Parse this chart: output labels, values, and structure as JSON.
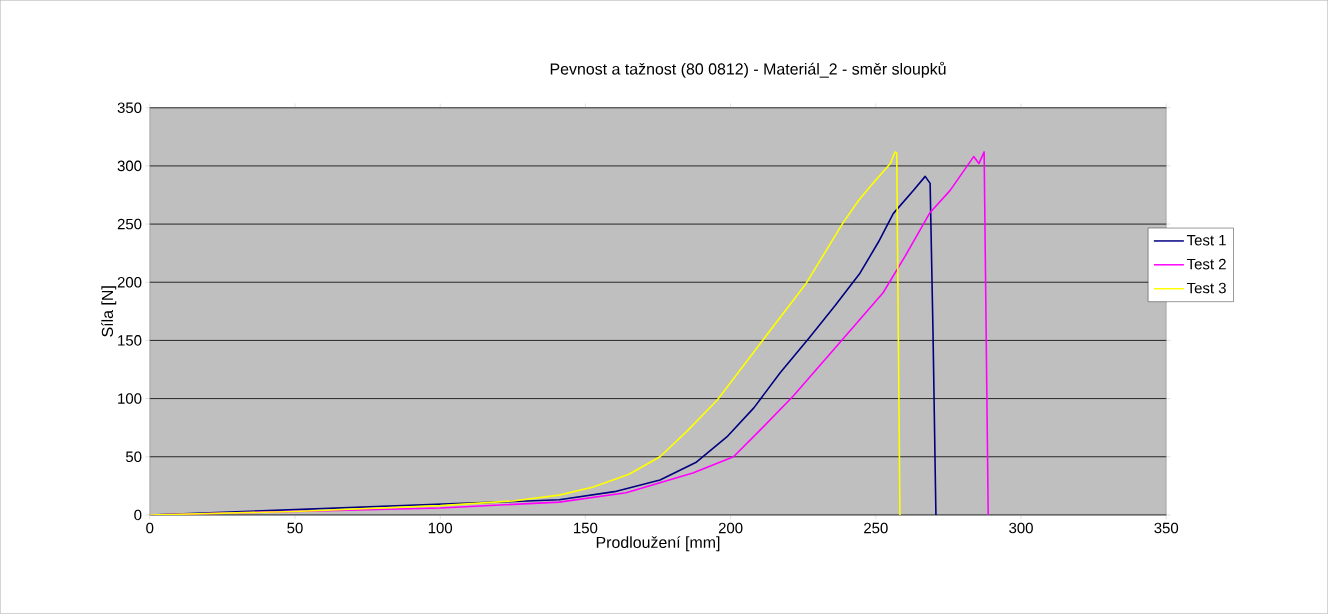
{
  "chart_data": {
    "type": "line",
    "title": "Pevnost a tažnost (80 0812) - Materiál_2 - směr sloupků",
    "xlabel": "Prodloužení [mm]",
    "ylabel": "Síla [N]",
    "xlim": [
      0,
      350
    ],
    "ylim": [
      0,
      350
    ],
    "xticks": [
      0,
      50,
      100,
      150,
      200,
      250,
      300,
      350
    ],
    "yticks": [
      0,
      50,
      100,
      150,
      200,
      250,
      300,
      350
    ],
    "grid": "y",
    "legend": "right",
    "marker": "none",
    "line_style": "solid",
    "series": [
      {
        "name": "Test 1",
        "color": "#000080",
        "x": [
          0,
          141,
          160,
          175.7,
          188,
          198.7,
          208,
          217,
          227.3,
          236,
          244.6,
          251,
          256,
          263,
          267,
          268.7,
          269.7,
          270.7
        ],
        "values": [
          0,
          13,
          20,
          30,
          45,
          67,
          92,
          122,
          153,
          180,
          208,
          235,
          259,
          279,
          291,
          285,
          156,
          0
        ]
      },
      {
        "name": "Test 2",
        "color": "#ff00ff",
        "x": [
          0,
          100,
          141,
          164,
          187,
          201,
          211,
          221.5,
          236.5,
          252.5,
          260,
          268.7,
          275.6,
          283.7,
          285.5,
          287.3,
          288.7
        ],
        "values": [
          0,
          6,
          11,
          19,
          36,
          50,
          75,
          102,
          145,
          191,
          222,
          260,
          279,
          308,
          302,
          312,
          0
        ]
      },
      {
        "name": "Test 3",
        "color": "#ffff00",
        "x": [
          0,
          50,
          100,
          125,
          141,
          152.7,
          165,
          175.7,
          185,
          195.5,
          211,
          226,
          238.7,
          244,
          249,
          255,
          256.6,
          257.2,
          258.3
        ],
        "values": [
          0,
          3,
          8,
          12,
          17,
          24,
          35,
          50,
          72,
          99,
          150,
          199,
          251,
          270,
          285,
          302,
          312,
          311,
          0
        ]
      }
    ]
  }
}
